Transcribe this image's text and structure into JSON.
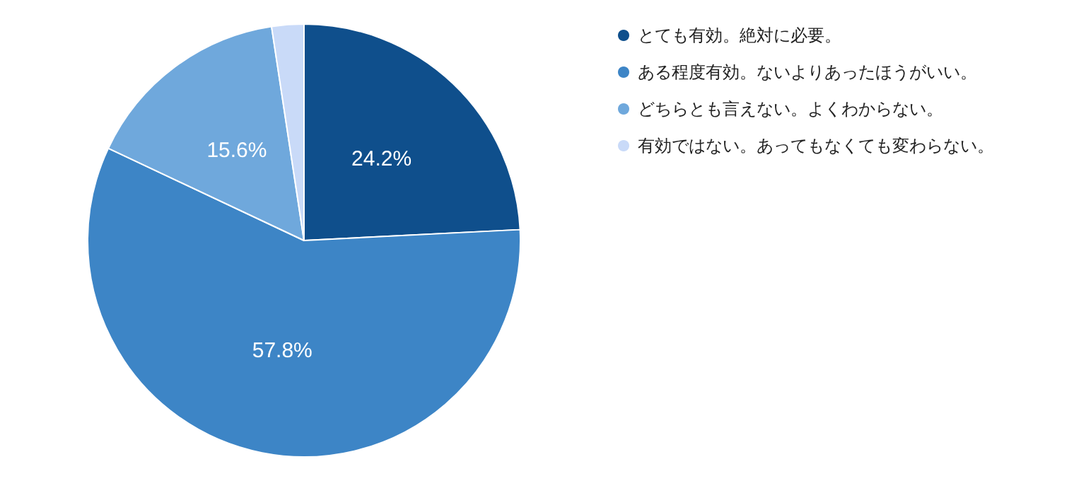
{
  "chart_data": {
    "type": "pie",
    "categories": [
      "とても有効。絶対に必要。",
      "ある程度有効。ないよりあったほうがいい。",
      "どちらとも言えない。よくわからない。",
      "有効ではない。あってもなくても変わらない。"
    ],
    "values": [
      24.2,
      57.8,
      15.6,
      2.4
    ],
    "colors": [
      "#0f4f8c",
      "#3d85c6",
      "#6fa8dc",
      "#c9daf8"
    ],
    "value_labels": [
      "24.2%",
      "57.8%",
      "15.6%",
      null
    ],
    "legend": "top right"
  }
}
